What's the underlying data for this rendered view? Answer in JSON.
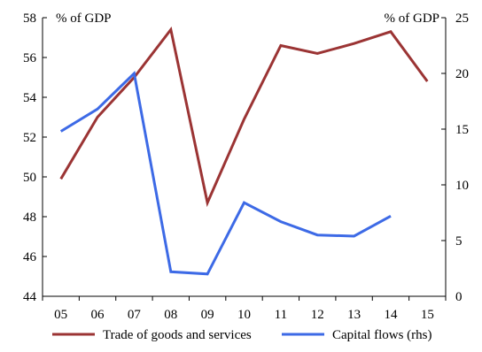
{
  "chart_data": {
    "type": "line",
    "categories": [
      "05",
      "06",
      "07",
      "08",
      "09",
      "10",
      "11",
      "12",
      "13",
      "14",
      "15"
    ],
    "left_axis": {
      "unit_label": "% of GDP",
      "ylim": [
        44,
        58
      ],
      "ticks": [
        44,
        46,
        48,
        50,
        52,
        54,
        56,
        58
      ]
    },
    "right_axis": {
      "unit_label": "% of GDP",
      "ylim": [
        0,
        25
      ],
      "ticks": [
        0,
        5,
        10,
        15,
        20,
        25
      ]
    },
    "series": [
      {
        "name": "Trade of goods and services",
        "axis": "left",
        "color": "#9b3434",
        "values": [
          49.9,
          53.0,
          55.0,
          57.4,
          48.7,
          52.9,
          56.6,
          56.2,
          56.7,
          57.3,
          54.8
        ]
      },
      {
        "name": "Capital flows (rhs)",
        "axis": "right",
        "color": "#3d6ae6",
        "values": [
          14.8,
          16.8,
          20.0,
          2.2,
          2.0,
          8.4,
          6.7,
          5.5,
          5.4,
          7.2,
          null
        ]
      }
    ],
    "grid": false,
    "legend_position": "bottom"
  }
}
